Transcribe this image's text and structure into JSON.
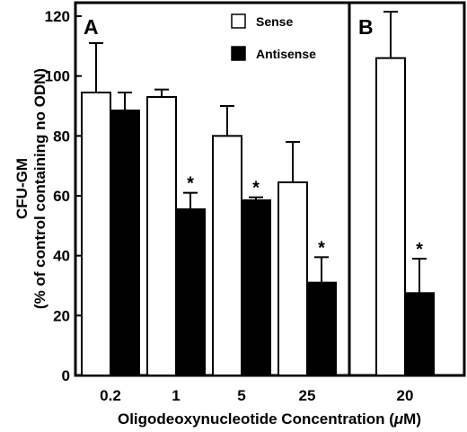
{
  "chart_data": [
    {
      "type": "bar",
      "panel": "A",
      "categories": [
        "0.2",
        "1",
        "5",
        "25"
      ],
      "series": [
        {
          "name": "Sense",
          "values": [
            94.5,
            93,
            80,
            64.5
          ],
          "errors": [
            16.5,
            2.5,
            10,
            13.5
          ],
          "color": "#ffffff"
        },
        {
          "name": "Antisense",
          "values": [
            88.5,
            55.5,
            58.5,
            31
          ],
          "errors": [
            6,
            5.5,
            1,
            8.5
          ],
          "color": "#000000"
        }
      ],
      "significant": {
        "Antisense": [
          false,
          true,
          true,
          true
        ]
      },
      "significance_marker": "*",
      "ylabel_line1": "CFU-GM",
      "ylabel_line2": "(% of control containing no ODN)",
      "ylim": [
        0,
        120
      ],
      "yticks": [
        0,
        20,
        40,
        60,
        80,
        100,
        120
      ],
      "legend_position": "top-right"
    },
    {
      "type": "bar",
      "panel": "B",
      "categories": [
        "20"
      ],
      "series": [
        {
          "name": "Sense",
          "values": [
            106
          ],
          "errors": [
            15.5
          ],
          "color": "#ffffff"
        },
        {
          "name": "Antisense",
          "values": [
            27.5
          ],
          "errors": [
            11.5
          ],
          "color": "#000000"
        }
      ],
      "significant": {
        "Antisense": [
          true
        ]
      },
      "significance_marker": "*",
      "ylim": [
        0,
        120
      ]
    }
  ],
  "xlabel": "Oligodeoxynucleotide Concentration (μM)",
  "xlabel_parts": {
    "before": "Oligodeoxynucleotide Concentration (",
    "unit": "μ",
    "after": "M)"
  }
}
